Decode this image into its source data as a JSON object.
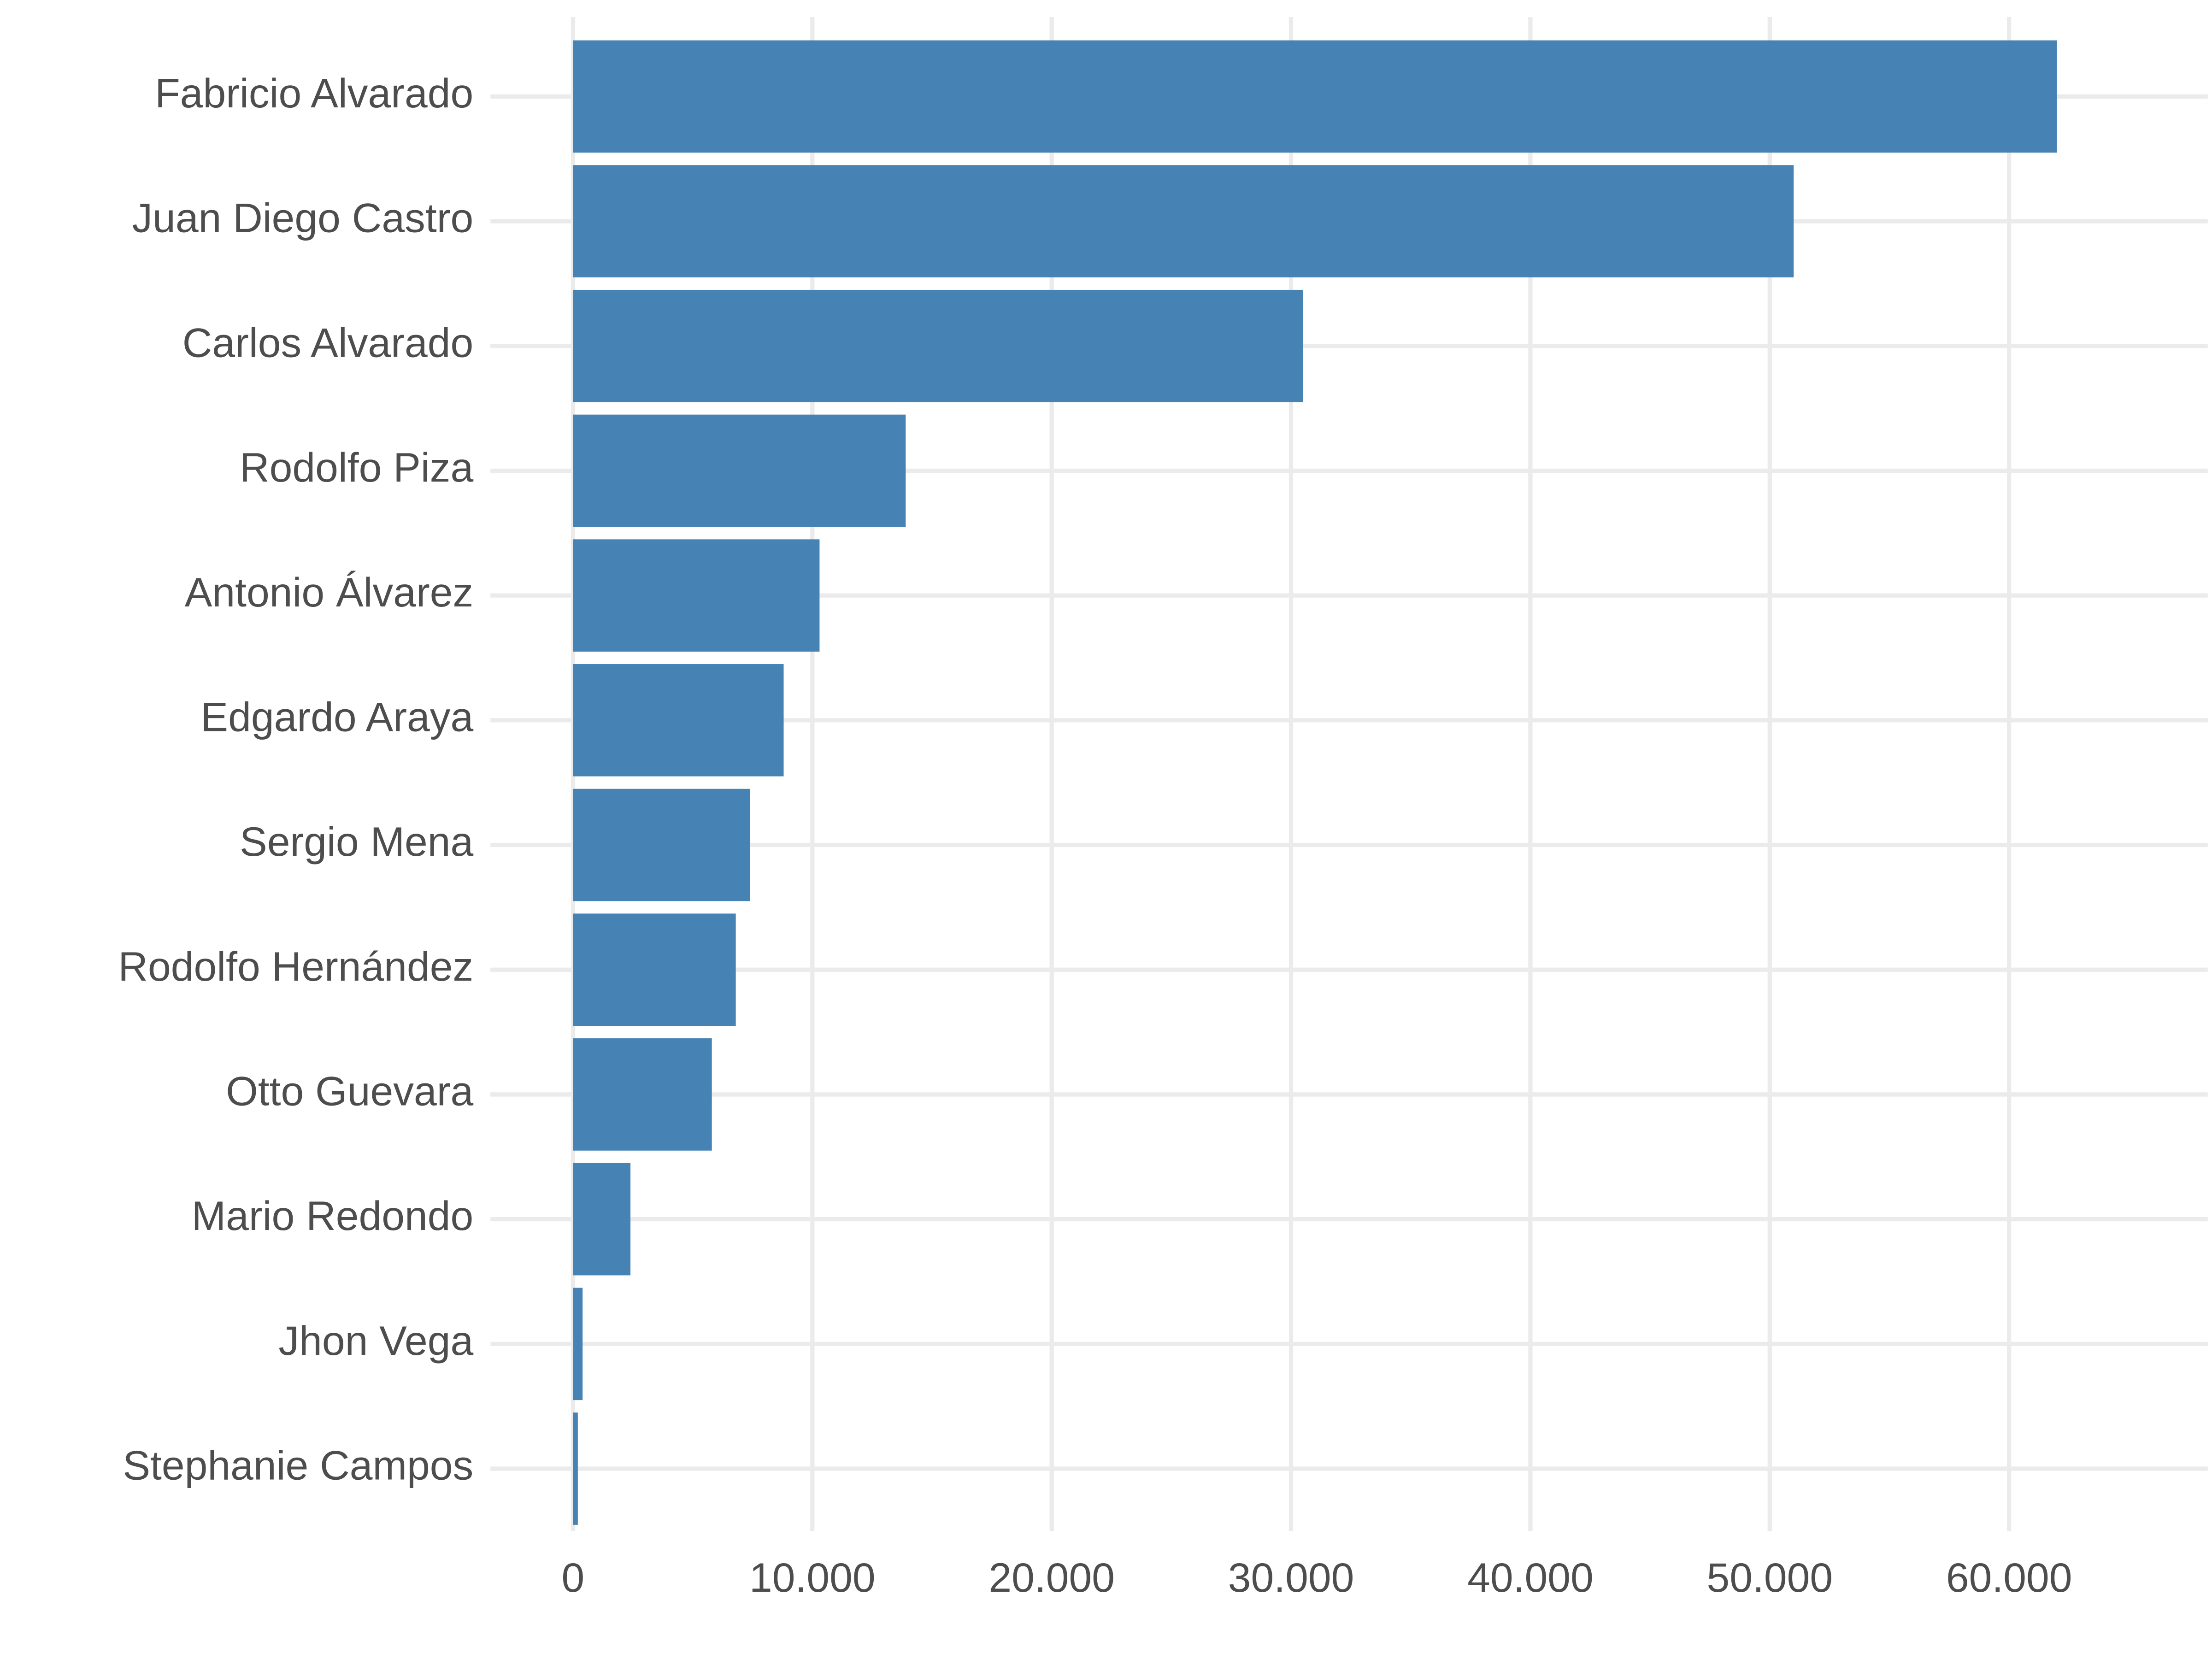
{
  "chart_data": {
    "type": "bar",
    "orientation": "horizontal",
    "categories": [
      "Fabricio Alvarado",
      "Juan Diego Castro",
      "Carlos Alvarado",
      "Rodolfo Piza",
      "Antonio Álvarez",
      "Edgardo Araya",
      "Sergio Mena",
      "Rodolfo Hernández",
      "Otto Guevara",
      "Mario Redondo",
      "Jhon Vega",
      "Stephanie Campos"
    ],
    "values": [
      62000,
      51000,
      30500,
      13900,
      10300,
      8800,
      7400,
      6800,
      5800,
      2400,
      400,
      200
    ],
    "color": "#4682b4",
    "xlim": [
      -3450,
      68300
    ],
    "xticks": [
      0,
      {
        "value": 10000,
        "label": "10.000"
      },
      {
        "value": 20000,
        "label": "20.000"
      },
      {
        "value": 30000,
        "label": "30.000"
      },
      {
        "value": 40000,
        "label": "40.000"
      },
      {
        "value": 50000,
        "label": "50.000"
      },
      {
        "value": 60000,
        "label": "60.000"
      }
    ],
    "grid": true
  }
}
